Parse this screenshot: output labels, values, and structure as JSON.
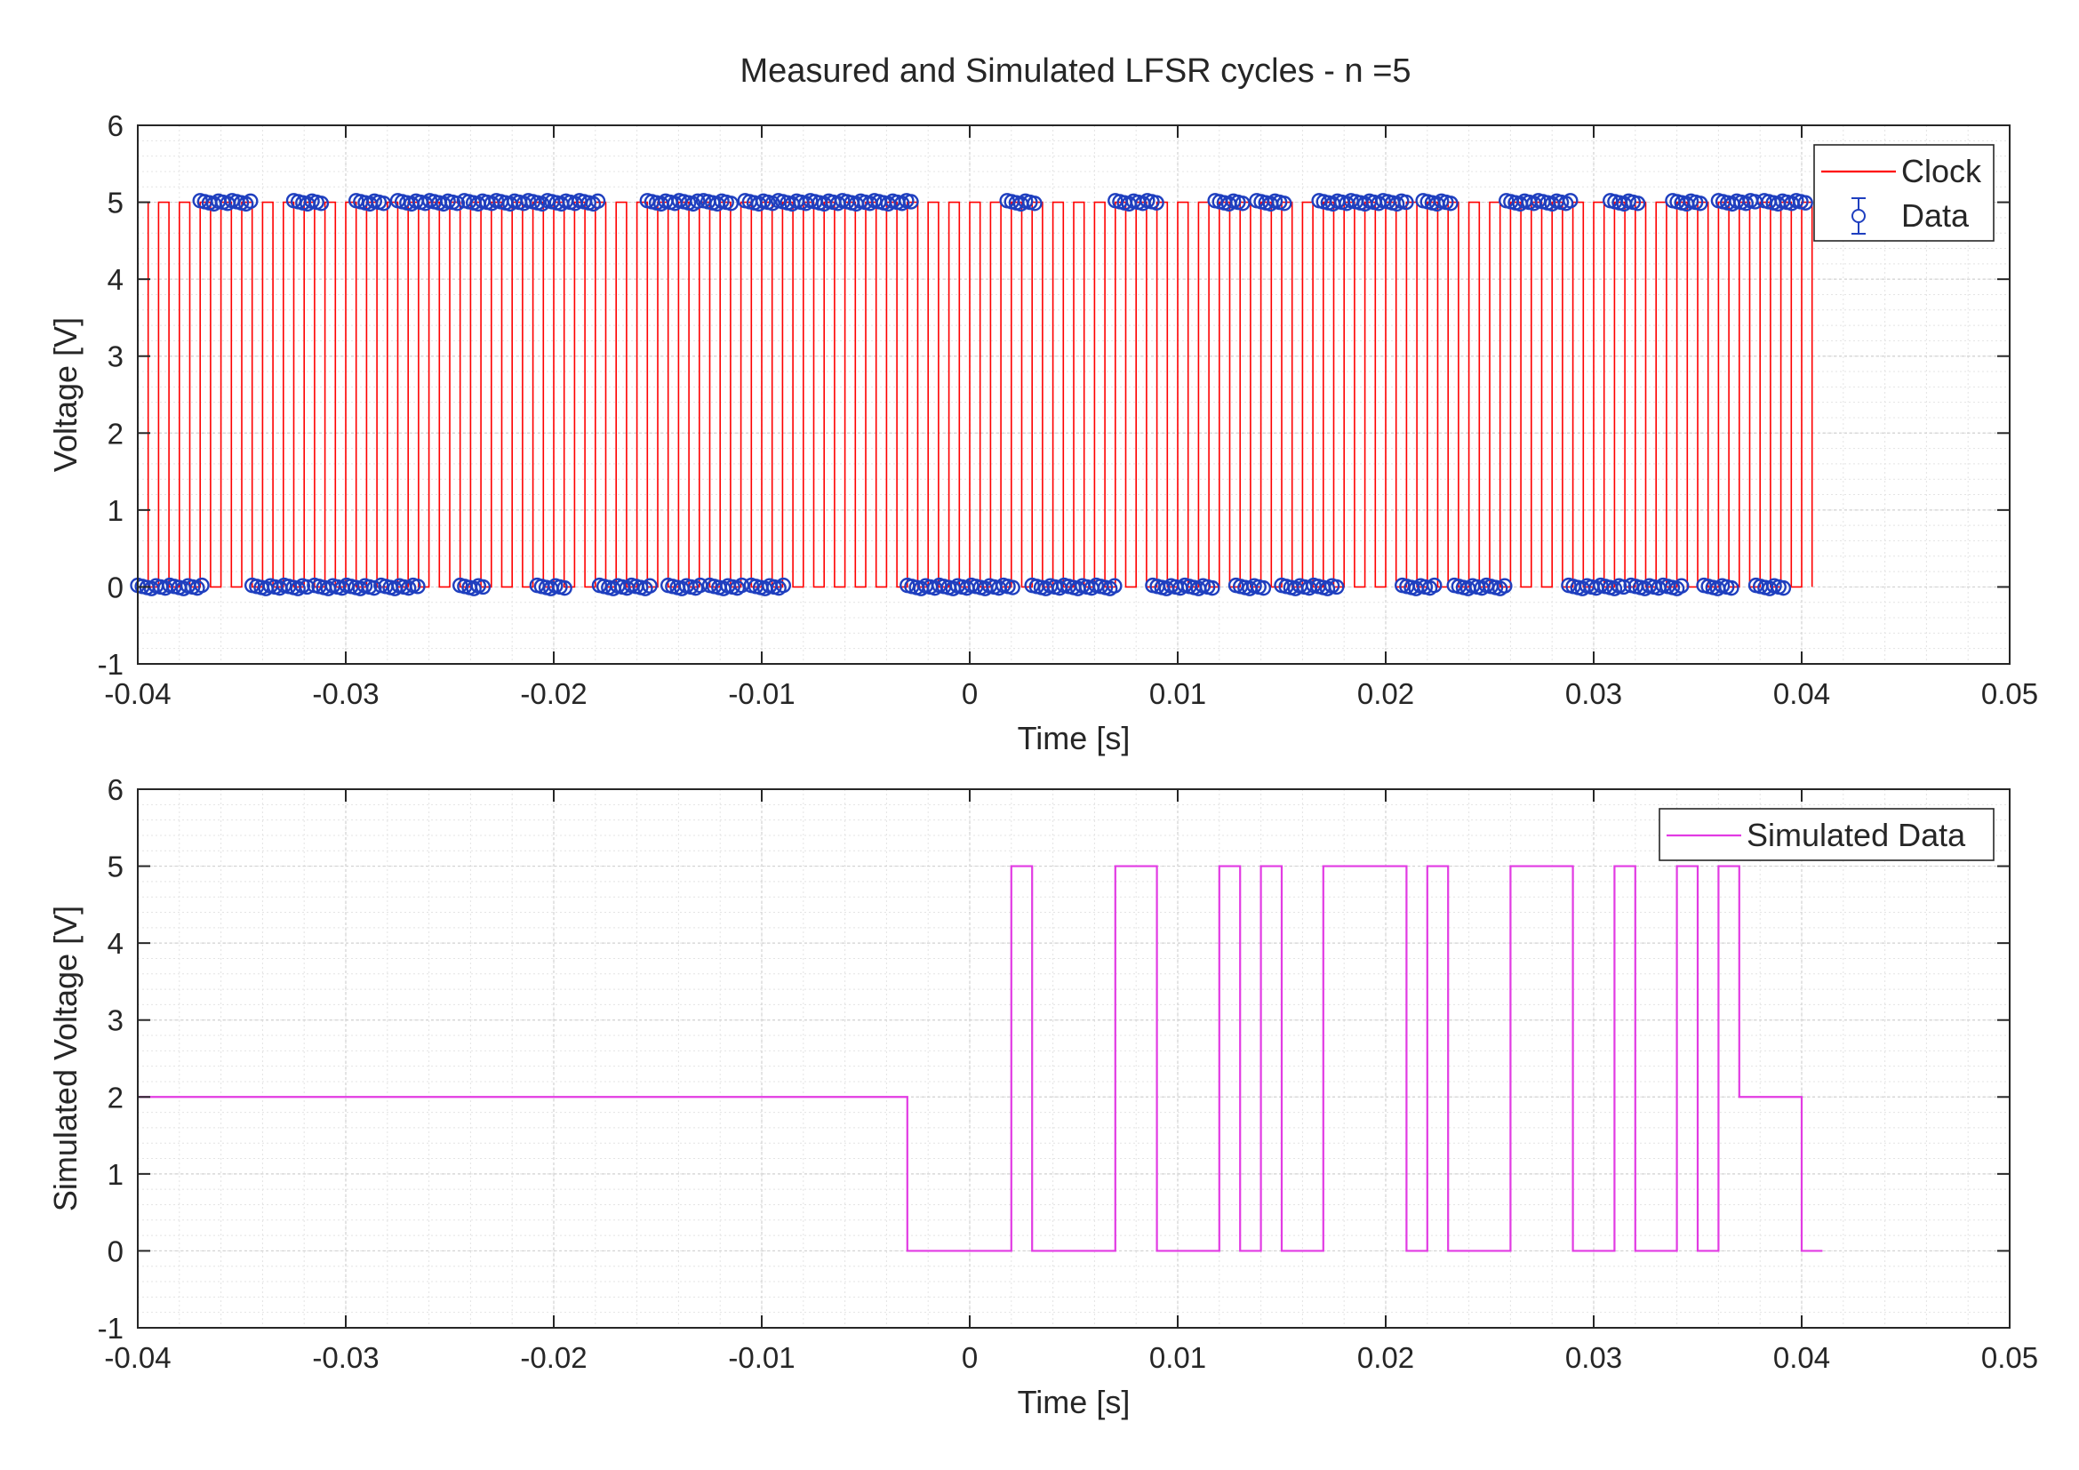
{
  "title": "Measured and Simulated LFSR cycles - n =5",
  "colors": {
    "clock": "#ff0000",
    "data": "#1f3fbf",
    "simulated": "#e23be3",
    "axis": "#262626"
  },
  "chart_data": [
    {
      "type": "line",
      "title": "Measured and Simulated LFSR cycles - n =5",
      "xlabel": "Time [s]",
      "ylabel": "Voltage [V]",
      "xlim": [
        -0.04,
        0.05
      ],
      "ylim": [
        -1,
        6
      ],
      "xticks": [
        -0.04,
        -0.03,
        -0.02,
        -0.01,
        0,
        0.01,
        0.02,
        0.03,
        0.04,
        0.05
      ],
      "xtick_labels": [
        "-0.04",
        "-0.03",
        "-0.02",
        "-0.01",
        "0",
        "0.01",
        "0.02",
        "0.03",
        "0.04",
        "0.05"
      ],
      "yticks": [
        -1,
        0,
        1,
        2,
        3,
        4,
        5,
        6
      ],
      "ytick_labels": [
        "-1",
        "0",
        "1",
        "2",
        "3",
        "4",
        "5",
        "6"
      ],
      "grid": true,
      "legend_position": "top-right",
      "series": [
        {
          "name": "Clock",
          "style": "line",
          "color": "#ff0000",
          "clock_start": -0.04,
          "clock_end": 0.0405,
          "period": 0.001,
          "duty": 0.5,
          "high": 5,
          "low": 0
        },
        {
          "name": "Data",
          "style": "errorbar-markers",
          "color": "#1f3fbf",
          "high": 5,
          "low": 0,
          "high_intervals": [
            [
              -0.037,
              -0.0345
            ],
            [
              -0.0325,
              -0.031
            ],
            [
              -0.0295,
              -0.028
            ],
            [
              -0.0275,
              -0.0245
            ],
            [
              -0.0243,
              -0.0205
            ],
            [
              -0.0203,
              -0.0178
            ],
            [
              -0.0155,
              -0.013
            ],
            [
              -0.0128,
              -0.0113
            ],
            [
              -0.0108,
              -0.0093
            ],
            [
              -0.0092,
              -0.0028
            ],
            [
              0.0018,
              0.0033
            ],
            [
              0.007,
              0.009
            ],
            [
              0.0118,
              0.0133
            ],
            [
              0.0138,
              0.0153
            ],
            [
              0.0168,
              0.021
            ],
            [
              0.0218,
              0.0233
            ],
            [
              0.0258,
              0.029
            ],
            [
              0.0308,
              0.0323
            ],
            [
              0.0338,
              0.0353
            ],
            [
              0.036,
              0.0378
            ],
            [
              0.0382,
              0.0402
            ]
          ],
          "low_intervals": [
            [
              -0.04,
              -0.0368
            ],
            [
              -0.0345,
              -0.0318
            ],
            [
              -0.0315,
              -0.0285
            ],
            [
              -0.0283,
              -0.0265
            ],
            [
              -0.0245,
              -0.0233
            ],
            [
              -0.0208,
              -0.0193
            ],
            [
              -0.0178,
              -0.0153
            ],
            [
              -0.0145,
              -0.0128
            ],
            [
              -0.0125,
              -0.0108
            ],
            [
              -0.0105,
              -0.0088
            ],
            [
              -0.003,
              0.0022
            ],
            [
              0.003,
              0.007
            ],
            [
              0.0088,
              0.0118
            ],
            [
              0.0128,
              0.0143
            ],
            [
              0.015,
              0.0178
            ],
            [
              0.0208,
              0.0225
            ],
            [
              0.0233,
              0.0258
            ],
            [
              0.0288,
              0.0315
            ],
            [
              0.0318,
              0.0343
            ],
            [
              0.0353,
              0.0368
            ],
            [
              0.0378,
              0.0393
            ]
          ]
        }
      ]
    },
    {
      "type": "line",
      "title": "",
      "xlabel": "Time [s]",
      "ylabel": "Simulated Voltage [V]",
      "xlim": [
        -0.04,
        0.05
      ],
      "ylim": [
        -1,
        6
      ],
      "xticks": [
        -0.04,
        -0.03,
        -0.02,
        -0.01,
        0,
        0.01,
        0.02,
        0.03,
        0.04,
        0.05
      ],
      "xtick_labels": [
        "-0.04",
        "-0.03",
        "-0.02",
        "-0.01",
        "0",
        "0.01",
        "0.02",
        "0.03",
        "0.04",
        "0.05"
      ],
      "yticks": [
        -1,
        0,
        1,
        2,
        3,
        4,
        5,
        6
      ],
      "ytick_labels": [
        "-1",
        "0",
        "1",
        "2",
        "3",
        "4",
        "5",
        "6"
      ],
      "grid": true,
      "legend_position": "top-right",
      "series": [
        {
          "name": "Simulated Data",
          "style": "step",
          "color": "#e23be3",
          "x": [
            -0.04,
            -0.003,
            0.002,
            0.003,
            0.007,
            0.009,
            0.012,
            0.013,
            0.014,
            0.015,
            0.017,
            0.021,
            0.022,
            0.023,
            0.026,
            0.029,
            0.031,
            0.032,
            0.034,
            0.035,
            0.036,
            0.037,
            0.04,
            0.041
          ],
          "y": [
            2,
            0,
            5,
            0,
            5,
            0,
            5,
            0,
            5,
            0,
            5,
            0,
            5,
            0,
            5,
            0,
            5,
            0,
            5,
            0,
            5,
            2,
            0,
            0
          ]
        }
      ]
    }
  ]
}
